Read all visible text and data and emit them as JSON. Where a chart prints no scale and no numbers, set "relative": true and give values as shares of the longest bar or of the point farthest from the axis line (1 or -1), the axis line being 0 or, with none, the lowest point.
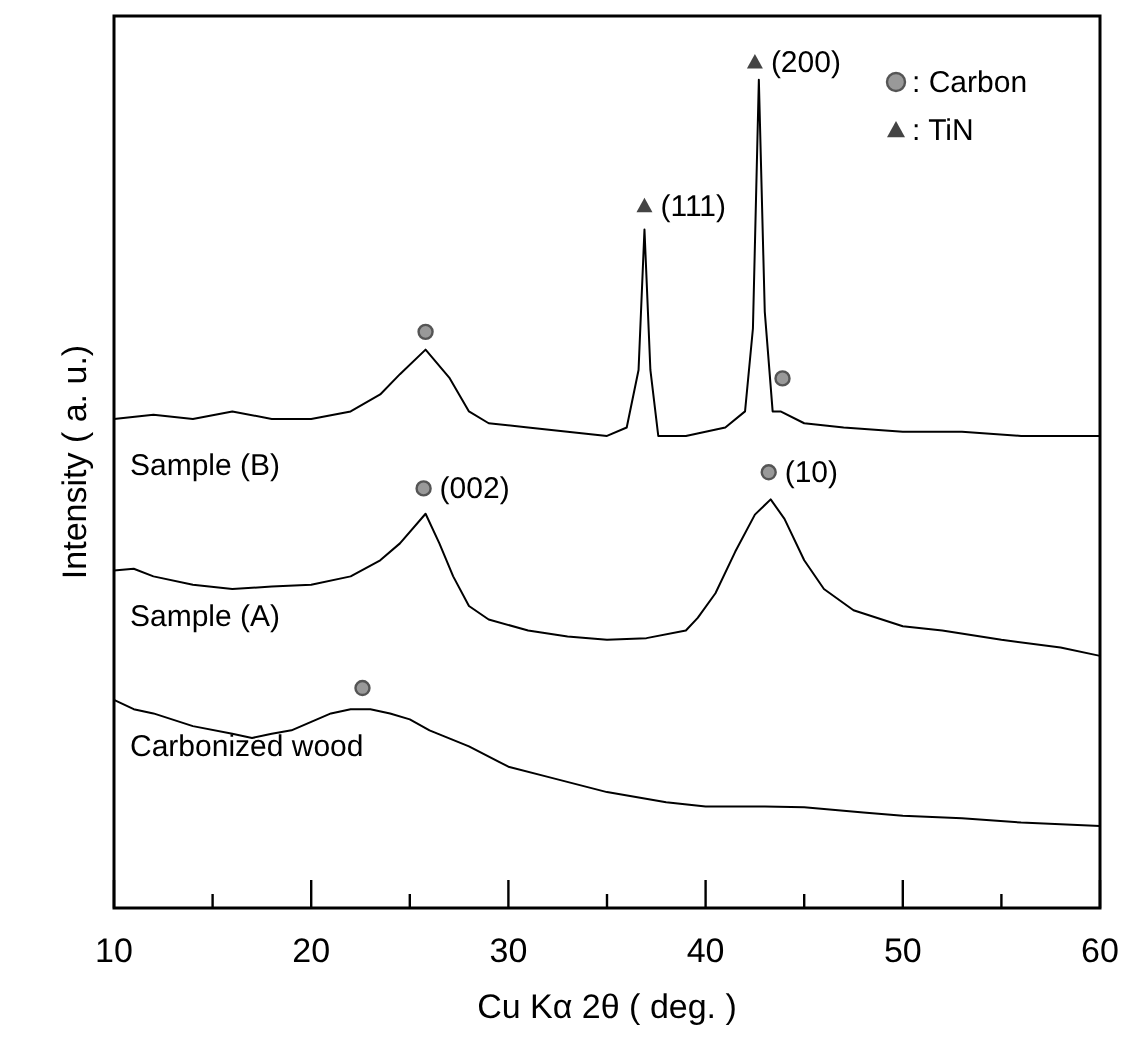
{
  "chart_data": {
    "type": "line",
    "relative": true,
    "xlabel": "Cu Kα  2θ  ( deg. )",
    "ylabel": "Intensity  ( a. u.)",
    "xlim": [
      10,
      60
    ],
    "xticks": [
      10,
      {
        "value": 15,
        "label": null
      },
      20,
      {
        "value": 25,
        "label": null
      },
      30,
      {
        "value": 35,
        "label": null
      },
      40,
      {
        "value": 45,
        "label": null
      },
      50,
      {
        "value": 55,
        "label": null
      },
      60
    ],
    "legend": "top right",
    "marker": "none",
    "line_style": "solid",
    "series": [
      {
        "name": "Sample (B)",
        "color": "#000000",
        "x": [
          10,
          12,
          14,
          16,
          18,
          20,
          22,
          23.5,
          24.5,
          25.8,
          27,
          28,
          29,
          31,
          33,
          35,
          36,
          36.6,
          36.9,
          37.2,
          37.6,
          39,
          41,
          42,
          42.4,
          42.7,
          43,
          43.4,
          43.8,
          45,
          47,
          50,
          53,
          56,
          60
        ],
        "values": [
          0.578,
          0.583,
          0.578,
          0.587,
          0.578,
          0.578,
          0.587,
          0.607,
          0.631,
          0.66,
          0.627,
          0.587,
          0.573,
          0.568,
          0.563,
          0.558,
          0.568,
          0.636,
          0.802,
          0.636,
          0.558,
          0.558,
          0.568,
          0.587,
          0.685,
          0.979,
          0.705,
          0.587,
          0.587,
          0.573,
          0.568,
          0.563,
          0.563,
          0.558,
          0.558
        ]
      },
      {
        "name": "Sample (A)",
        "color": "#000000",
        "x": [
          10,
          11,
          12,
          14,
          16,
          18,
          20,
          22,
          23.5,
          24.5,
          25.8,
          26.5,
          27.2,
          28,
          29,
          31,
          33,
          35,
          37,
          39,
          39.6,
          40.5,
          41.5,
          42.5,
          43.3,
          44,
          45,
          46,
          47.5,
          50,
          52,
          55,
          58,
          60
        ],
        "values": [
          0.399,
          0.401,
          0.392,
          0.382,
          0.377,
          0.38,
          0.382,
          0.392,
          0.411,
          0.431,
          0.466,
          0.431,
          0.392,
          0.357,
          0.341,
          0.328,
          0.321,
          0.317,
          0.319,
          0.328,
          0.343,
          0.372,
          0.421,
          0.465,
          0.483,
          0.46,
          0.411,
          0.377,
          0.352,
          0.333,
          0.328,
          0.317,
          0.308,
          0.298
        ]
      },
      {
        "name": "Carbonized wood",
        "color": "#000000",
        "x": [
          10,
          11,
          12,
          14,
          16,
          17,
          18,
          19,
          20,
          21,
          22,
          23,
          24,
          25,
          26,
          28,
          30,
          32,
          35,
          38,
          40,
          43,
          45,
          48,
          50,
          53,
          56,
          60
        ],
        "values": [
          0.246,
          0.235,
          0.23,
          0.215,
          0.206,
          0.201,
          0.206,
          0.21,
          0.22,
          0.23,
          0.235,
          0.235,
          0.23,
          0.223,
          0.21,
          0.191,
          0.167,
          0.155,
          0.137,
          0.125,
          0.12,
          0.12,
          0.119,
          0.113,
          0.109,
          0.106,
          0.101,
          0.097
        ]
      },
      {
        "name": ": Carbon",
        "type": "scatter",
        "marker": "circle",
        "color": "#555555",
        "x": [
          25.8,
          43.9,
          25.7,
          43.2,
          22.6
        ],
        "values": [
          0.681,
          0.626,
          0.496,
          0.515,
          0.26
        ]
      },
      {
        "name": ": TiN",
        "type": "scatter",
        "marker": "triangle",
        "color": "#444444",
        "x": [
          36.9,
          42.5
        ],
        "values": [
          0.83,
          1
        ]
      }
    ],
    "annotations": [
      {
        "text": "(111)",
        "x": 36.9,
        "y": 0.83
      },
      {
        "text": "(200)",
        "x": 42.5,
        "y": 1
      },
      {
        "text": "(002)",
        "x": 25.7,
        "y": 0.496
      },
      {
        "text": "(10)",
        "x": 43.2,
        "y": 0.515
      }
    ]
  }
}
